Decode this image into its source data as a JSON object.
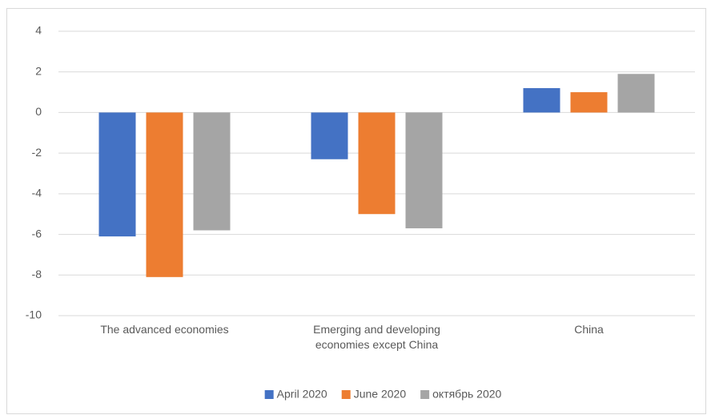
{
  "chart_data": {
    "type": "bar",
    "categories": [
      "The advanced economies",
      "Emerging and developing economies except China",
      "China"
    ],
    "series": [
      {
        "name": "April 2020",
        "color": "#4472c4",
        "values": [
          -6.1,
          -2.3,
          1.2
        ]
      },
      {
        "name": "June 2020",
        "color": "#ed7d31",
        "values": [
          -8.1,
          -5.0,
          1.0
        ]
      },
      {
        "name": "октябрь 2020",
        "color": "#a5a5a5",
        "values": [
          -5.8,
          -5.7,
          1.9
        ]
      }
    ],
    "ylim": [
      -10,
      4
    ],
    "yticks": [
      -10,
      -8,
      -6,
      -4,
      -2,
      0,
      2,
      4
    ],
    "grid": true,
    "legend": "bottom"
  }
}
